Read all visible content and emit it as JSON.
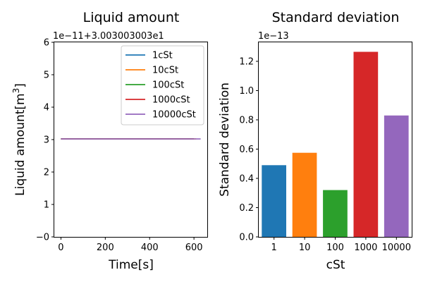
{
  "chart_data": [
    {
      "type": "line",
      "title": "Liquid amount",
      "xlabel": "Time[s]",
      "ylabel_main": "Liquid amount[m",
      "ylabel_sup": "3",
      "ylabel_end": "]",
      "offset_label": "1e−11+3.003003003e1",
      "xlim": [
        -30,
        660
      ],
      "ylim": [
        0,
        6
      ],
      "x_ticks": [
        0,
        200,
        400,
        600
      ],
      "x_tick_labels": [
        "0",
        "200",
        "400",
        "600"
      ],
      "y_ticks": [
        0,
        1,
        2,
        3,
        4,
        5,
        6
      ],
      "y_tick_labels": [
        "−0",
        "1",
        "2",
        "3",
        "4",
        "5",
        "6"
      ],
      "legend_position": "upper right",
      "series": [
        {
          "name": "1cSt",
          "color": "#1f77b4",
          "x": [
            0,
            600
          ],
          "y": [
            3.02,
            3.02
          ]
        },
        {
          "name": "10cSt",
          "color": "#ff7f0e",
          "x": [
            0,
            610
          ],
          "y": [
            3.02,
            3.02
          ]
        },
        {
          "name": "100cSt",
          "color": "#2ca02c",
          "x": [
            0,
            600
          ],
          "y": [
            3.02,
            3.02
          ]
        },
        {
          "name": "1000cSt",
          "color": "#d62728",
          "x": [
            0,
            600
          ],
          "y": [
            3.02,
            3.02
          ]
        },
        {
          "name": "10000cSt",
          "color": "#9467bd",
          "x": [
            0,
            630
          ],
          "y": [
            3.02,
            3.02
          ]
        }
      ]
    },
    {
      "type": "bar",
      "title": "Standard deviation",
      "xlabel": "cSt",
      "ylabel": "Standard deviation",
      "offset_label": "1e−13",
      "categories": [
        "1",
        "10",
        "100",
        "1000",
        "10000"
      ],
      "values": [
        0.49,
        0.575,
        0.32,
        1.265,
        0.83
      ],
      "colors": [
        "#1f77b4",
        "#ff7f0e",
        "#2ca02c",
        "#d62728",
        "#9467bd"
      ],
      "ylim": [
        0,
        1.33
      ],
      "y_ticks": [
        0,
        0.2,
        0.4,
        0.6,
        0.8,
        1.0,
        1.2
      ],
      "y_tick_labels": [
        "0.0",
        "0.2",
        "0.4",
        "0.6",
        "0.8",
        "1.0",
        "1.2"
      ]
    }
  ]
}
